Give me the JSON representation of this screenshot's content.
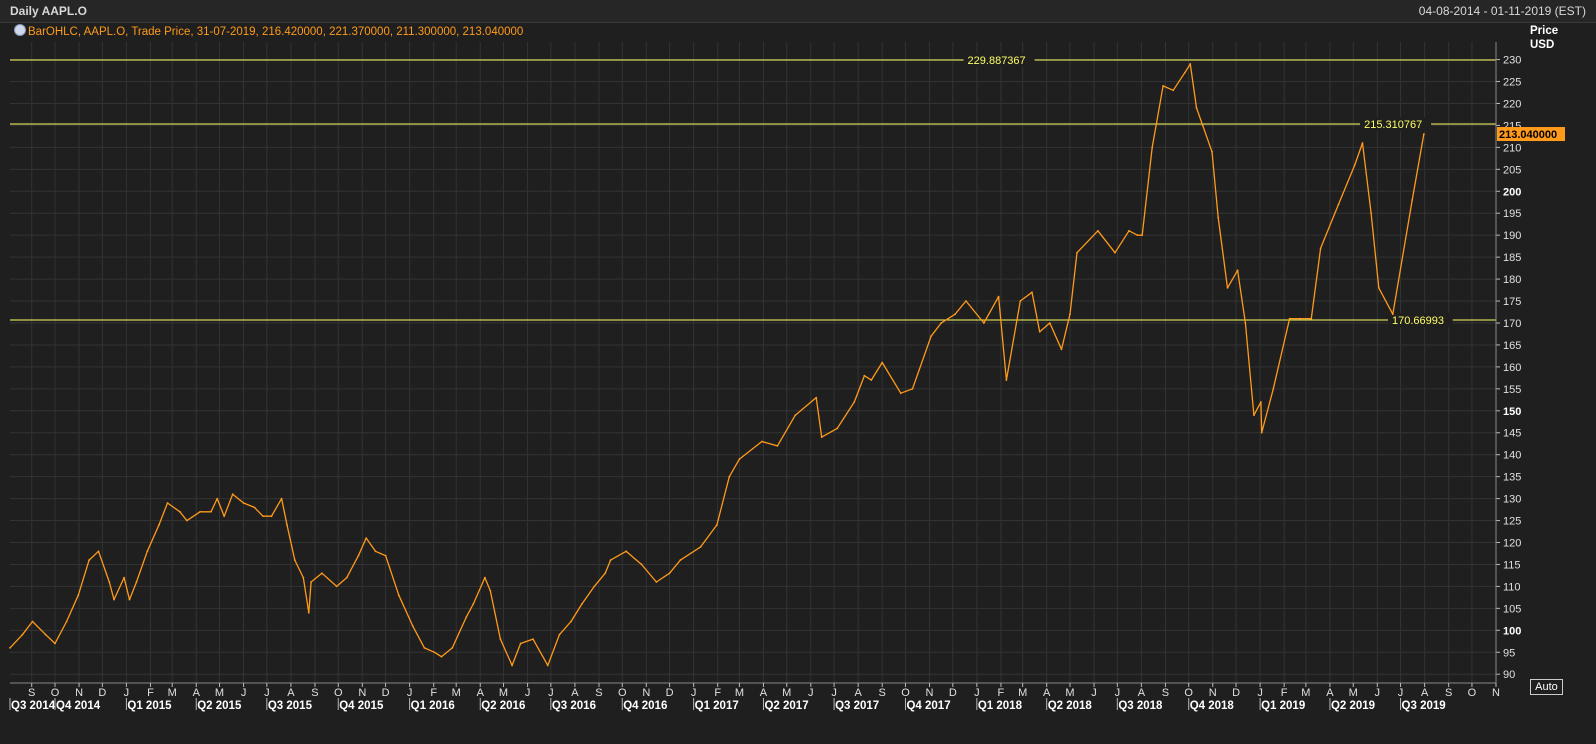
{
  "window": {
    "title": "Daily AAPL.O",
    "date_range": "04-08-2014 - 01-11-2019 (EST)"
  },
  "legend_text": "BarOHLC, AAPL.O, Trade Price, 31-07-2019, 216.420000, 221.370000, 211.300000, 213.040000",
  "axis": {
    "price_label": "Price",
    "unit_label": "USD",
    "auto_label": "Auto"
  },
  "colors": {
    "background": "#1f1f1f",
    "grid": "#333333",
    "series": "#ff9a1a",
    "hline": "#ffff66",
    "last_price_badge": "#ff9a1a"
  },
  "chart_data": {
    "type": "line",
    "title": "Daily AAPL.O",
    "series_name": "AAPL.O",
    "ylabel": "Price USD",
    "ylim": [
      88,
      234
    ],
    "yticks": [
      90,
      95,
      100,
      105,
      110,
      115,
      120,
      125,
      130,
      135,
      140,
      145,
      150,
      155,
      160,
      165,
      170,
      175,
      180,
      185,
      190,
      195,
      200,
      205,
      210,
      215,
      220,
      225,
      230
    ],
    "bold_yticks": [
      100,
      150,
      200
    ],
    "xlim": [
      "2014-08-04",
      "2019-11-01"
    ],
    "month_ticks": [
      {
        "date": "2014-09-01",
        "label": "S"
      },
      {
        "date": "2014-10-01",
        "label": "O"
      },
      {
        "date": "2014-11-01",
        "label": "N"
      },
      {
        "date": "2014-12-01",
        "label": "D"
      },
      {
        "date": "2015-01-01",
        "label": "J"
      },
      {
        "date": "2015-02-01",
        "label": "F"
      },
      {
        "date": "2015-03-01",
        "label": "M"
      },
      {
        "date": "2015-04-01",
        "label": "A"
      },
      {
        "date": "2015-05-01",
        "label": "M"
      },
      {
        "date": "2015-06-01",
        "label": "J"
      },
      {
        "date": "2015-07-01",
        "label": "J"
      },
      {
        "date": "2015-08-01",
        "label": "A"
      },
      {
        "date": "2015-09-01",
        "label": "S"
      },
      {
        "date": "2015-10-01",
        "label": "O"
      },
      {
        "date": "2015-11-01",
        "label": "N"
      },
      {
        "date": "2015-12-01",
        "label": "D"
      },
      {
        "date": "2016-01-01",
        "label": "J"
      },
      {
        "date": "2016-02-01",
        "label": "F"
      },
      {
        "date": "2016-03-01",
        "label": "M"
      },
      {
        "date": "2016-04-01",
        "label": "A"
      },
      {
        "date": "2016-05-01",
        "label": "M"
      },
      {
        "date": "2016-06-01",
        "label": "J"
      },
      {
        "date": "2016-07-01",
        "label": "J"
      },
      {
        "date": "2016-08-01",
        "label": "A"
      },
      {
        "date": "2016-09-01",
        "label": "S"
      },
      {
        "date": "2016-10-01",
        "label": "O"
      },
      {
        "date": "2016-11-01",
        "label": "N"
      },
      {
        "date": "2016-12-01",
        "label": "D"
      },
      {
        "date": "2017-01-01",
        "label": "J"
      },
      {
        "date": "2017-02-01",
        "label": "F"
      },
      {
        "date": "2017-03-01",
        "label": "M"
      },
      {
        "date": "2017-04-01",
        "label": "A"
      },
      {
        "date": "2017-05-01",
        "label": "M"
      },
      {
        "date": "2017-06-01",
        "label": "J"
      },
      {
        "date": "2017-07-01",
        "label": "J"
      },
      {
        "date": "2017-08-01",
        "label": "A"
      },
      {
        "date": "2017-09-01",
        "label": "S"
      },
      {
        "date": "2017-10-01",
        "label": "O"
      },
      {
        "date": "2017-11-01",
        "label": "N"
      },
      {
        "date": "2017-12-01",
        "label": "D"
      },
      {
        "date": "2018-01-01",
        "label": "J"
      },
      {
        "date": "2018-02-01",
        "label": "F"
      },
      {
        "date": "2018-03-01",
        "label": "M"
      },
      {
        "date": "2018-04-01",
        "label": "A"
      },
      {
        "date": "2018-05-01",
        "label": "M"
      },
      {
        "date": "2018-06-01",
        "label": "J"
      },
      {
        "date": "2018-07-01",
        "label": "J"
      },
      {
        "date": "2018-08-01",
        "label": "A"
      },
      {
        "date": "2018-09-01",
        "label": "S"
      },
      {
        "date": "2018-10-01",
        "label": "O"
      },
      {
        "date": "2018-11-01",
        "label": "N"
      },
      {
        "date": "2018-12-01",
        "label": "D"
      },
      {
        "date": "2019-01-01",
        "label": "J"
      },
      {
        "date": "2019-02-01",
        "label": "F"
      },
      {
        "date": "2019-03-01",
        "label": "M"
      },
      {
        "date": "2019-04-01",
        "label": "A"
      },
      {
        "date": "2019-05-01",
        "label": "M"
      },
      {
        "date": "2019-06-01",
        "label": "J"
      },
      {
        "date": "2019-07-01",
        "label": "J"
      },
      {
        "date": "2019-08-01",
        "label": "A"
      },
      {
        "date": "2019-09-01",
        "label": "S"
      },
      {
        "date": "2019-10-01",
        "label": "O"
      },
      {
        "date": "2019-11-01",
        "label": "N"
      }
    ],
    "quarter_ticks": [
      {
        "date": "2014-08-04",
        "label": "Q3 2014"
      },
      {
        "date": "2014-10-01",
        "label": "Q4 2014"
      },
      {
        "date": "2015-01-01",
        "label": "Q1 2015"
      },
      {
        "date": "2015-04-01",
        "label": "Q2 2015"
      },
      {
        "date": "2015-07-01",
        "label": "Q3 2015"
      },
      {
        "date": "2015-10-01",
        "label": "Q4 2015"
      },
      {
        "date": "2016-01-01",
        "label": "Q1 2016"
      },
      {
        "date": "2016-04-01",
        "label": "Q2 2016"
      },
      {
        "date": "2016-07-01",
        "label": "Q3 2016"
      },
      {
        "date": "2016-10-01",
        "label": "Q4 2016"
      },
      {
        "date": "2017-01-01",
        "label": "Q1 2017"
      },
      {
        "date": "2017-04-01",
        "label": "Q2 2017"
      },
      {
        "date": "2017-07-01",
        "label": "Q3 2017"
      },
      {
        "date": "2017-10-01",
        "label": "Q4 2017"
      },
      {
        "date": "2018-01-01",
        "label": "Q1 2018"
      },
      {
        "date": "2018-04-01",
        "label": "Q2 2018"
      },
      {
        "date": "2018-07-01",
        "label": "Q3 2018"
      },
      {
        "date": "2018-10-01",
        "label": "Q4 2018"
      },
      {
        "date": "2019-01-01",
        "label": "Q1 2019"
      },
      {
        "date": "2019-04-01",
        "label": "Q2 2019"
      },
      {
        "date": "2019-07-01",
        "label": "Q3 2019"
      }
    ],
    "horizontal_lines": [
      {
        "value": 229.887367,
        "label": "229.887367",
        "label_date": "2017-12-20"
      },
      {
        "value": 215.310767,
        "label": "215.310767",
        "label_date": "2019-05-15"
      },
      {
        "value": 170.66993,
        "label": "170.66993",
        "label_date": "2019-06-20"
      }
    ],
    "last_price": {
      "value": 213.04,
      "label": "213.040000"
    },
    "x": [
      "2014-08-04",
      "2014-08-20",
      "2014-09-02",
      "2014-09-19",
      "2014-10-01",
      "2014-10-16",
      "2014-10-31",
      "2014-11-14",
      "2014-11-26",
      "2014-12-10",
      "2014-12-16",
      "2014-12-29",
      "2015-01-05",
      "2015-01-14",
      "2015-01-28",
      "2015-02-12",
      "2015-02-23",
      "2015-03-11",
      "2015-03-20",
      "2015-04-06",
      "2015-04-20",
      "2015-04-28",
      "2015-05-07",
      "2015-05-18",
      "2015-06-01",
      "2015-06-15",
      "2015-06-26",
      "2015-07-07",
      "2015-07-20",
      "2015-07-27",
      "2015-08-06",
      "2015-08-17",
      "2015-08-24",
      "2015-08-27",
      "2015-09-10",
      "2015-09-29",
      "2015-10-12",
      "2015-10-27",
      "2015-11-06",
      "2015-11-18",
      "2015-12-01",
      "2015-12-18",
      "2016-01-05",
      "2016-01-20",
      "2016-02-02",
      "2016-02-11",
      "2016-02-25",
      "2016-03-14",
      "2016-03-23",
      "2016-04-07",
      "2016-04-14",
      "2016-04-27",
      "2016-05-12",
      "2016-05-23",
      "2016-06-08",
      "2016-06-27",
      "2016-07-12",
      "2016-07-27",
      "2016-08-10",
      "2016-08-26",
      "2016-09-09",
      "2016-09-16",
      "2016-10-06",
      "2016-10-26",
      "2016-11-14",
      "2016-12-01",
      "2016-12-15",
      "2017-01-10",
      "2017-01-31",
      "2017-02-16",
      "2017-03-01",
      "2017-03-30",
      "2017-04-19",
      "2017-05-12",
      "2017-06-08",
      "2017-06-15",
      "2017-07-05",
      "2017-07-27",
      "2017-08-09",
      "2017-08-18",
      "2017-09-01",
      "2017-09-25",
      "2017-10-10",
      "2017-11-03",
      "2017-11-16",
      "2017-12-04",
      "2017-12-18",
      "2018-01-10",
      "2018-01-29",
      "2018-02-08",
      "2018-02-26",
      "2018-03-13",
      "2018-03-23",
      "2018-04-05",
      "2018-04-20",
      "2018-05-01",
      "2018-05-10",
      "2018-06-06",
      "2018-06-28",
      "2018-07-16",
      "2018-07-27",
      "2018-08-02",
      "2018-08-15",
      "2018-08-29",
      "2018-09-11",
      "2018-09-26",
      "2018-10-03",
      "2018-10-11",
      "2018-10-19",
      "2018-10-31",
      "2018-11-08",
      "2018-11-20",
      "2018-12-03",
      "2018-12-13",
      "2018-12-24",
      "2019-01-02",
      "2019-01-03",
      "2019-01-18",
      "2019-02-08",
      "2019-02-21",
      "2019-03-08",
      "2019-03-20",
      "2019-04-12",
      "2019-05-03",
      "2019-05-13",
      "2019-05-24",
      "2019-06-03",
      "2019-06-21",
      "2019-07-16",
      "2019-07-31"
    ],
    "y": [
      96,
      99,
      102,
      99,
      97,
      102,
      108,
      116,
      118,
      111,
      107,
      112,
      107,
      111,
      118,
      124,
      129,
      127,
      125,
      127,
      127,
      130,
      126,
      131,
      129,
      128,
      126,
      126,
      130,
      124,
      116,
      112,
      104,
      111,
      113,
      110,
      112,
      117,
      121,
      118,
      117,
      108,
      101,
      96,
      95,
      94,
      96,
      103,
      106,
      112,
      109,
      98,
      92,
      97,
      98,
      92,
      99,
      102,
      106,
      110,
      113,
      116,
      118,
      115,
      111,
      113,
      116,
      119,
      124,
      135,
      139,
      143,
      142,
      149,
      153,
      144,
      146,
      152,
      158,
      157,
      161,
      154,
      155,
      167,
      170,
      172,
      175,
      170,
      176,
      157,
      175,
      177,
      168,
      170,
      164,
      172,
      186,
      191,
      186,
      191,
      190,
      190,
      210,
      224,
      223,
      227,
      229,
      219,
      215,
      209,
      194,
      178,
      182,
      170,
      149,
      152,
      145,
      155,
      171,
      171,
      171,
      187,
      197,
      206,
      211,
      195,
      178,
      172,
      198,
      213
    ]
  }
}
